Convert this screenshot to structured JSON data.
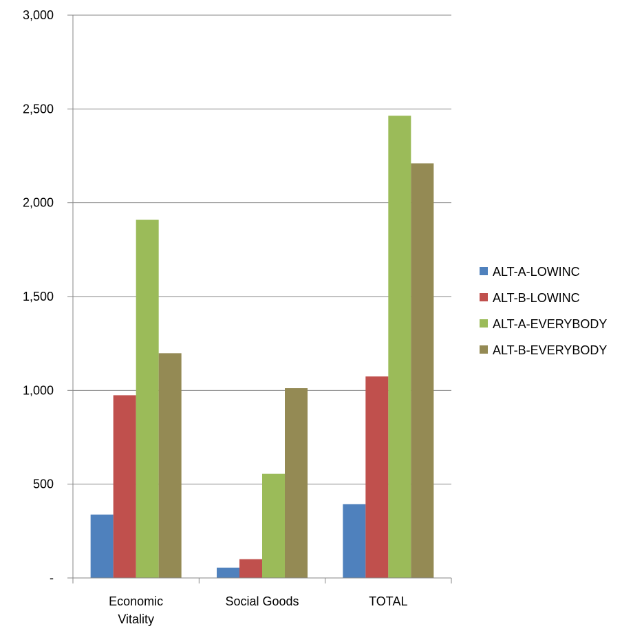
{
  "chart_data": {
    "type": "bar",
    "title": "",
    "xlabel": "",
    "ylabel": "",
    "categories": [
      "Economic Vitality",
      "Social Goods",
      "TOTAL"
    ],
    "category_lines": [
      [
        "Economic",
        "Vitality"
      ],
      [
        "Social Goods"
      ],
      [
        "TOTAL"
      ]
    ],
    "series": [
      {
        "name": "ALT-A-LOWINC",
        "color": "#4f81bd",
        "values": [
          338,
          55,
          393
        ]
      },
      {
        "name": "ALT-B-LOWINC",
        "color": "#c0504d",
        "values": [
          974,
          100,
          1074
        ]
      },
      {
        "name": "ALT-A-EVERYBODY",
        "color": "#9bbb59",
        "values": [
          1909,
          555,
          2464
        ]
      },
      {
        "name": "ALT-B-EVERYBODY",
        "color": "#948a54",
        "values": [
          1198,
          1012,
          2210
        ]
      }
    ],
    "ylim": [
      0,
      3000
    ],
    "yticks": [
      0,
      500,
      1000,
      1500,
      2000,
      2500,
      3000
    ],
    "ytick_labels": [
      "-",
      "500",
      "1,000",
      "1,500",
      "2,000",
      "2,500",
      "3,000"
    ],
    "grid": true,
    "legend_position": "right"
  }
}
